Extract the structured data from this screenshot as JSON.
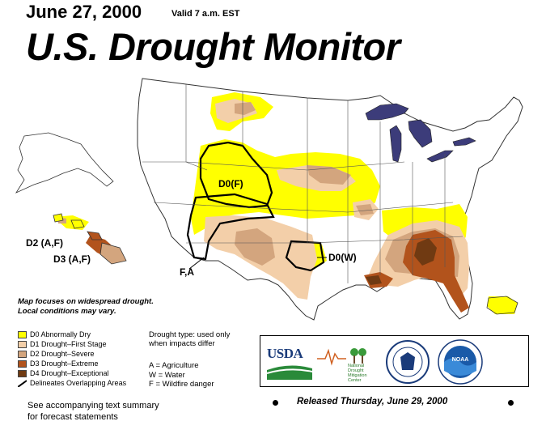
{
  "header": {
    "date": "June 27, 2000",
    "valid": "Valid 7 a.m. EST",
    "title": "U.S. Drought Monitor"
  },
  "map": {
    "labels": {
      "northwest_region": "D0(F)",
      "hawaii_north": "D2 (A,F)",
      "hawaii_south": "D3 (A,F)",
      "southwest_region": "F,A",
      "texas_region": "D0(W)"
    }
  },
  "note": {
    "line1": "Map focuses on widespread drought.",
    "line2": "Local conditions may vary."
  },
  "legend": {
    "items": [
      {
        "label": "D0 Abnormally Dry",
        "color": "#ffff00"
      },
      {
        "label": "D1 Drought–First Stage",
        "color": "#f3cfa9"
      },
      {
        "label": "D2 Drought–Severe",
        "color": "#d3a57e"
      },
      {
        "label": "D3 Drought–Extreme",
        "color": "#b2531c"
      },
      {
        "label": "D4 Drought–Exceptional",
        "color": "#703a12"
      }
    ],
    "outline_label": "Delineates Overlapping Areas"
  },
  "drought_type": {
    "line1": "Drought type: used only",
    "line2": "when impacts differ",
    "codes": [
      "A = Agriculture",
      "W = Water",
      "F = Wildfire danger"
    ]
  },
  "logos": {
    "usda": "USDA",
    "ndmc": "National Drought Mitigation Center",
    "noaa": "NOAA",
    "usda_logo_icon": "usda-logo-icon",
    "ndmc_logo_icon": "ndmc-logo-icon",
    "commerce_seal_icon": "commerce-seal-icon",
    "noaa_logo_icon": "noaa-logo-icon"
  },
  "footer": {
    "released": "Released Thursday, June 29, 2000",
    "accompany_line1": "See accompanying text summary",
    "accompany_line2": "for forecast statements"
  }
}
